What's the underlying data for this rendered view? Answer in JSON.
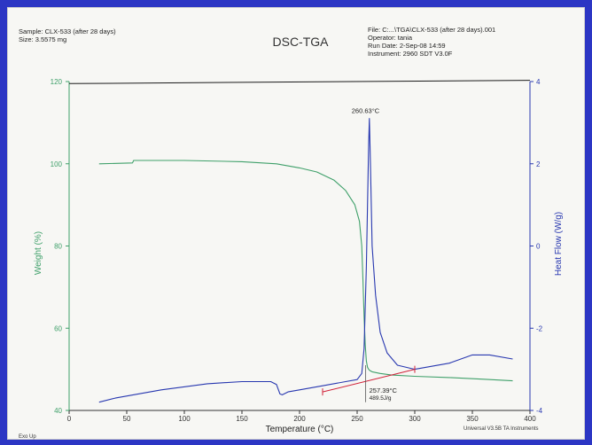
{
  "header": {
    "left_lines": [
      "Sample: CLX-533 (after 28 days)",
      "Size:  3.5575 mg"
    ],
    "title": "DSC-TGA",
    "right_lines": [
      "File: C:...\\TGA\\CLX-533 (after 28 days).001",
      "Operator: tania",
      "Run Date: 2-Sep-08 14:59",
      "Instrument: 2960 SDT V3.0F"
    ]
  },
  "footer": {
    "left": "Exo Up",
    "right": "Universal V3.5B TA Instruments"
  },
  "annotations": {
    "peak": "260.63°C",
    "onset_temp": "257.39°C",
    "enthalpy": "489.5J/g"
  },
  "colors": {
    "weight": "#3fa06a",
    "heat_flow": "#2838b0",
    "baseline": "#d02038",
    "background": "#2c36c4",
    "paper": "#f7f7f4"
  },
  "chart_data": {
    "type": "line",
    "xlabel": "Temperature (°C)",
    "ylabel": "Weight (%)",
    "y2label": "Heat Flow (W/g)",
    "xlim": [
      0,
      400
    ],
    "ylim": [
      40,
      120
    ],
    "y2lim": [
      -4,
      4
    ],
    "xticks": [
      0,
      50,
      100,
      150,
      200,
      250,
      300,
      350,
      400
    ],
    "yticks": [
      40,
      60,
      80,
      100,
      120
    ],
    "y2ticks": [
      -4,
      -2,
      0,
      2,
      4
    ],
    "grid": false,
    "series": [
      {
        "axis": "left",
        "color": "#3fa06a",
        "x": [
          26,
          55,
          56,
          100,
          150,
          180,
          200,
          215,
          230,
          240,
          248,
          252,
          254,
          255,
          256,
          257,
          258,
          259,
          260,
          261,
          263,
          270,
          280,
          300,
          330,
          360,
          385
        ],
        "y": [
          100.0,
          100.2,
          100.8,
          100.8,
          100.5,
          100.0,
          99.0,
          98.0,
          96.0,
          93.5,
          90.0,
          86.0,
          80.0,
          72.0,
          63.0,
          56.0,
          52.0,
          50.5,
          50.0,
          49.7,
          49.4,
          49.0,
          48.6,
          48.3,
          48.0,
          47.6,
          47.2
        ]
      },
      {
        "axis": "right",
        "color": "#2838b0",
        "x": [
          26,
          40,
          80,
          120,
          150,
          175,
          180,
          183,
          185,
          190,
          200,
          220,
          240,
          250,
          254,
          256,
          258,
          259,
          260,
          260.6,
          261.5,
          263,
          266,
          270,
          276,
          285,
          300,
          330,
          350,
          365,
          385
        ],
        "y": [
          -3.8,
          -3.7,
          -3.5,
          -3.35,
          -3.3,
          -3.3,
          -3.37,
          -3.6,
          -3.62,
          -3.55,
          -3.5,
          -3.4,
          -3.3,
          -3.25,
          -3.1,
          -2.5,
          -0.5,
          1.0,
          2.5,
          3.1,
          2.0,
          0.0,
          -1.2,
          -2.1,
          -2.6,
          -2.9,
          -3.0,
          -2.85,
          -2.65,
          -2.65,
          -2.75
        ]
      },
      {
        "axis": "top",
        "color": "#1a1a1a",
        "x": [
          0,
          400
        ],
        "y": [
          119.5,
          120.3
        ]
      }
    ],
    "baseline": {
      "color": "#d02038",
      "x": [
        220,
        300
      ],
      "y": [
        -3.55,
        -3.0
      ]
    }
  }
}
